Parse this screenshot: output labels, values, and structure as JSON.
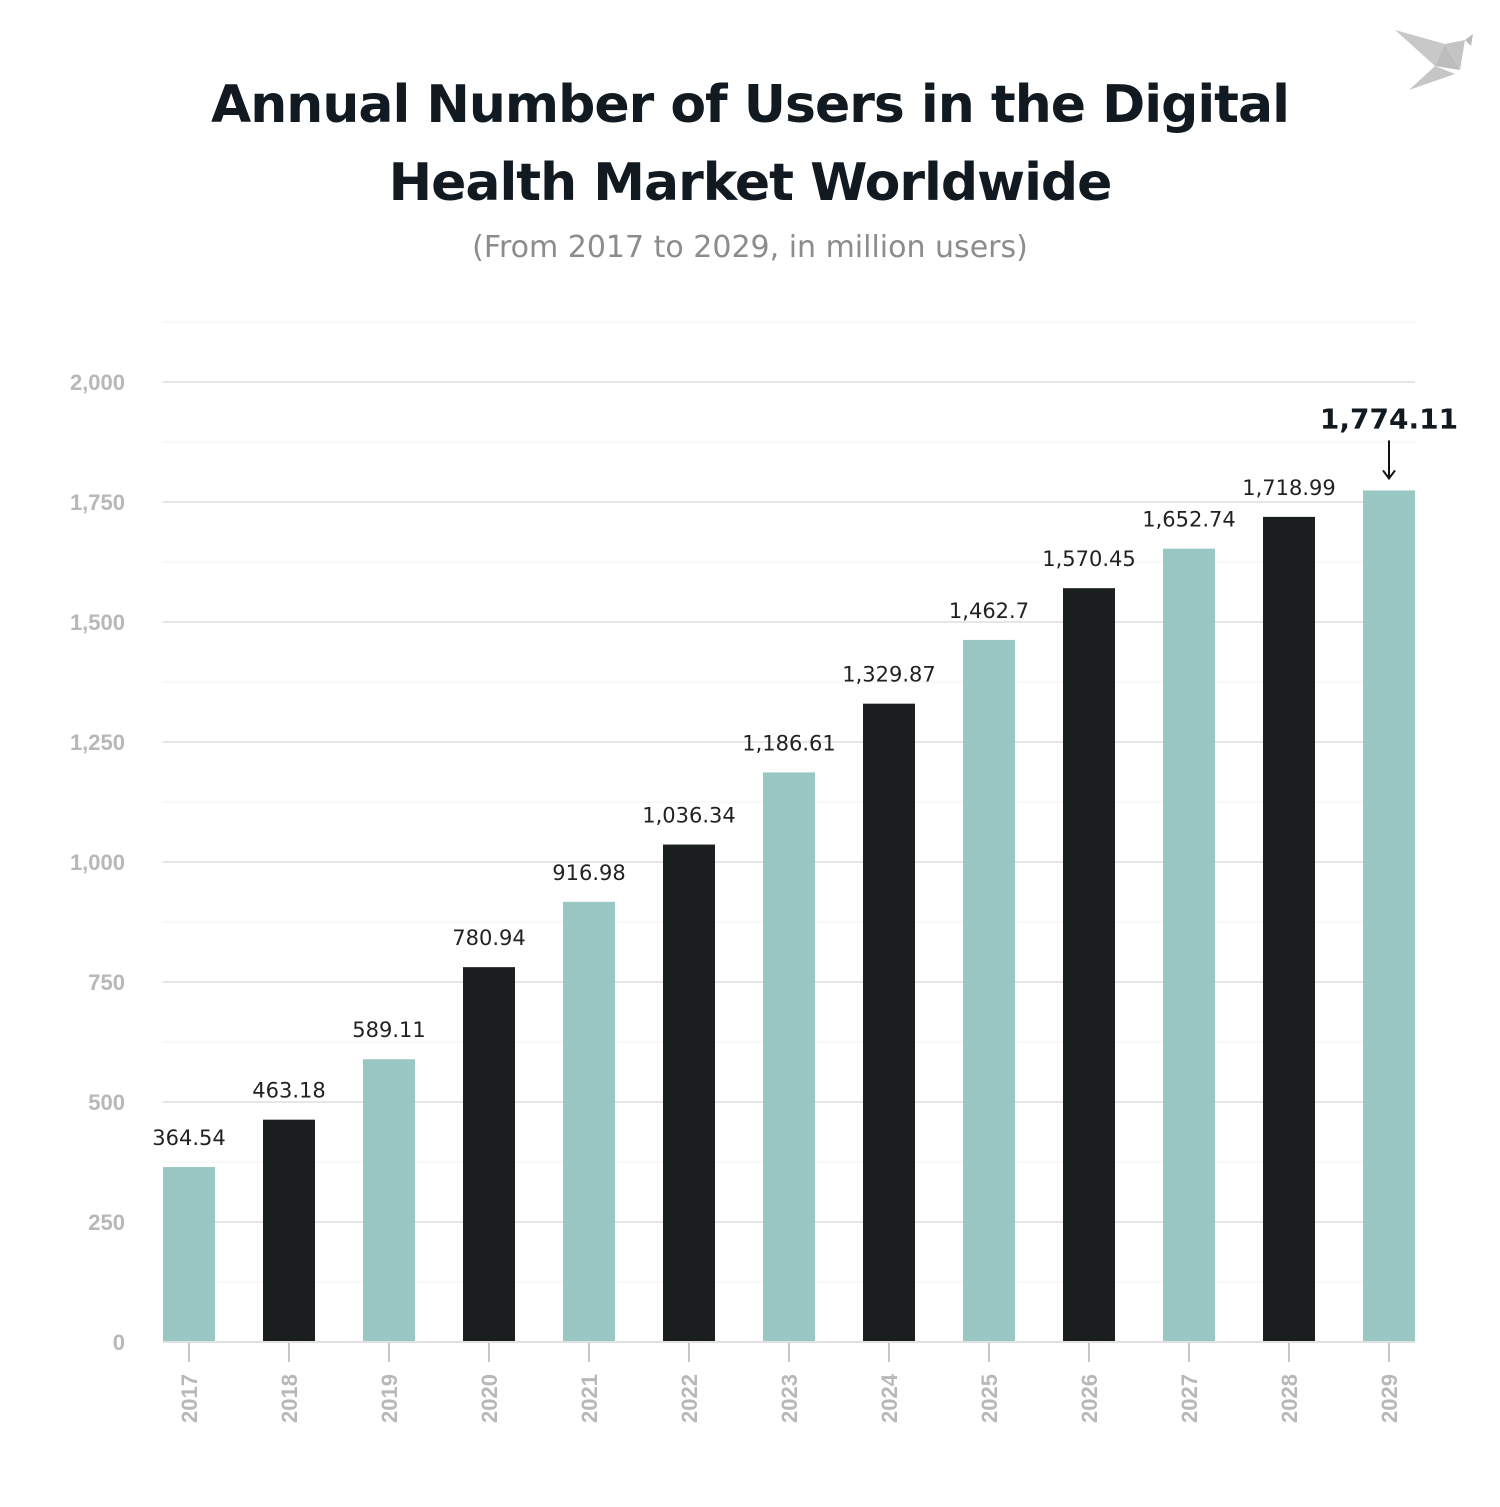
{
  "chart_data": {
    "type": "bar",
    "title": "Annual Number of Users in the Digital Health Market Worldwide",
    "subtitle": "(From 2017 to 2029, in million users)",
    "xlabel": "",
    "ylabel": "",
    "categories": [
      "2017",
      "2018",
      "2019",
      "2020",
      "2021",
      "2022",
      "2023",
      "2024",
      "2025",
      "2026",
      "2027",
      "2028",
      "2029"
    ],
    "values": [
      364.54,
      463.18,
      589.11,
      780.94,
      916.98,
      1036.34,
      1186.61,
      1329.87,
      1462.7,
      1570.45,
      1652.74,
      1718.99,
      1774.11
    ],
    "value_labels": [
      "364.54",
      "463.18",
      "589.11",
      "780.94",
      "916.98",
      "1,036.34",
      "1,186.61",
      "1,329.87",
      "1,462.7",
      "1,570.45",
      "1,652.74",
      "1,718.99",
      "1,774.11"
    ],
    "ylim": [
      0,
      2125
    ],
    "yticks": [
      0,
      250,
      500,
      750,
      1000,
      1250,
      1500,
      1750,
      2000
    ],
    "ytick_labels": [
      "0",
      "250",
      "500",
      "750",
      "1,000",
      "1,250",
      "1,500",
      "1,750",
      "2,000"
    ],
    "grid": true,
    "highlight_last": true,
    "colors": {
      "teal": "#99c7c4",
      "dark": "#1b1e1f",
      "axis_text": "#b8b8b8",
      "title": "#111a21"
    }
  },
  "logo": {
    "icon": "origami-bird-icon",
    "color": "#c8c8c8"
  }
}
